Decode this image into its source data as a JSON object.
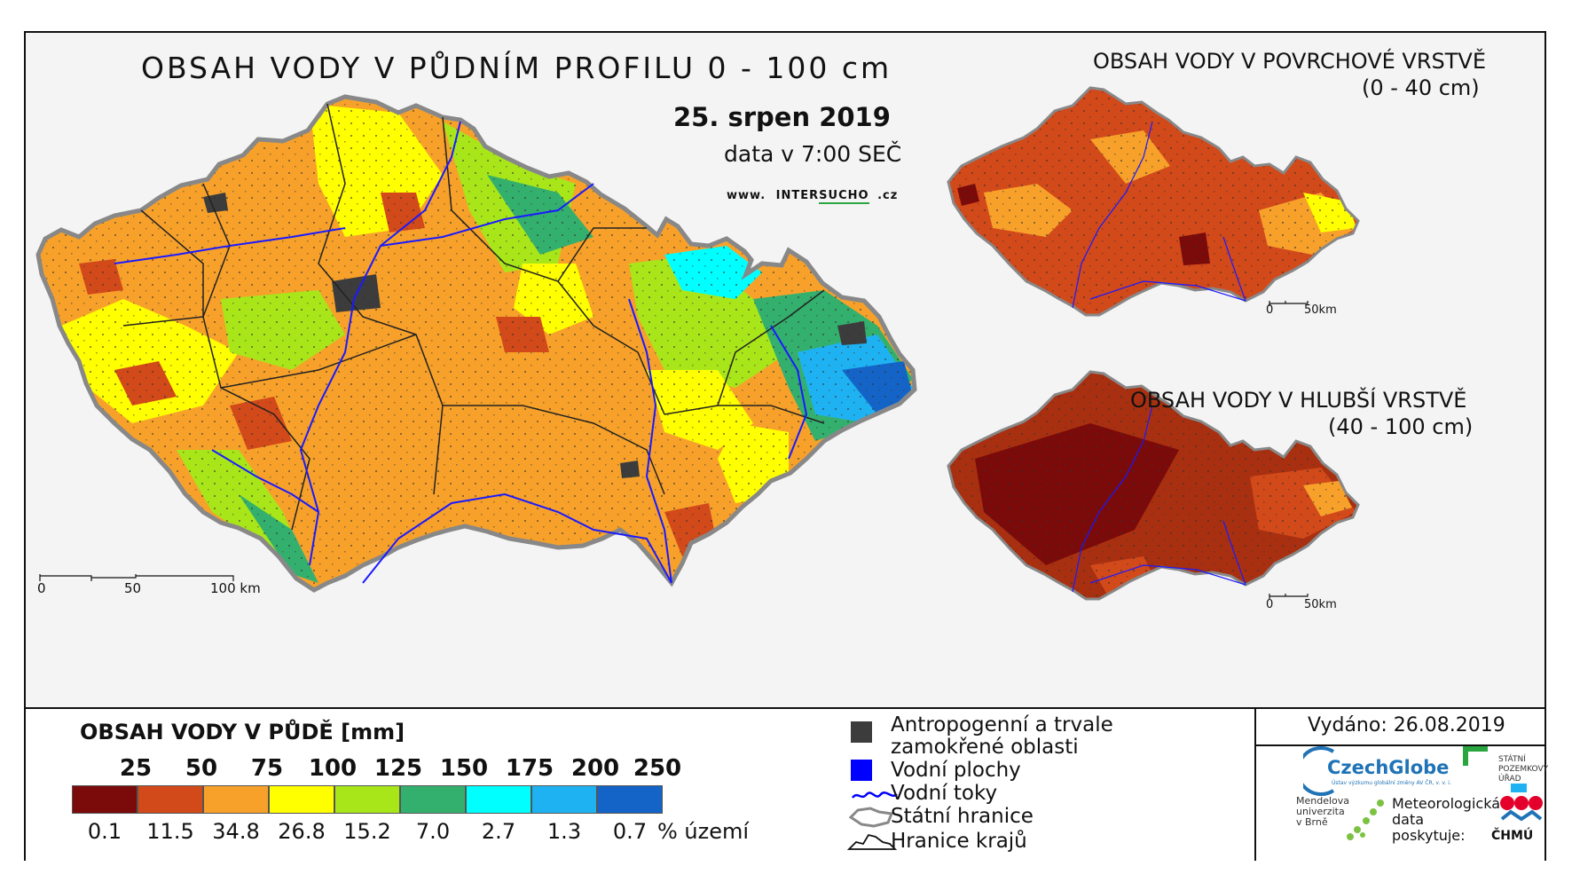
{
  "map": {
    "title": "OBSAH VODY V PŮDNÍM PROFILU 0 - 100 cm",
    "date": "25. srpen 2019",
    "time_note": "data v 7:00 SEČ",
    "website": {
      "prefix": "www.",
      "name_a": "INTER",
      "name_b": "SUCHO",
      "suffix": ".cz"
    },
    "scale": {
      "tick0": "0",
      "tick1": "50",
      "tick2": "100 km"
    }
  },
  "inset_surface": {
    "title": "OBSAH VODY V POVRCHOVÉ VRSTVĚ",
    "range": "(0 - 40 cm)",
    "scale": {
      "tick0": "0",
      "tick1": "50km"
    }
  },
  "inset_deep": {
    "title": "OBSAH VODY V HLUBŠÍ VRSTVĚ",
    "range": "(40 - 100 cm)",
    "scale": {
      "tick0": "0",
      "tick1": "50km"
    }
  },
  "legend": {
    "title": "OBSAH VODY V PŮDĚ [mm]",
    "thresholds": [
      "25",
      "50",
      "75",
      "100",
      "125",
      "150",
      "175",
      "200",
      "250"
    ],
    "classes": [
      {
        "color": "#7b0a0a",
        "percent": "0.1"
      },
      {
        "color": "#d2491a",
        "percent": "11.5"
      },
      {
        "color": "#f7a12a",
        "percent": "34.8"
      },
      {
        "color": "#ffff00",
        "percent": "26.8"
      },
      {
        "color": "#a8e61a",
        "percent": "15.2"
      },
      {
        "color": "#34b06e",
        "percent": "7.0"
      },
      {
        "color": "#00ffff",
        "percent": "2.7"
      },
      {
        "color": "#1fb2f2",
        "percent": "1.3"
      },
      {
        "color": "#1464c8",
        "percent": "0.7"
      }
    ],
    "percent_unit": "% území",
    "symbols": {
      "anthropogenic_line1": "Antropogenní a trvale",
      "anthropogenic_line2": "zamokřené oblasti",
      "anthropogenic_color": "#3c3c3c",
      "water_bodies": "Vodní plochy",
      "water_color": "#0000ff",
      "rivers": "Vodní toky",
      "river_color": "#0000ff",
      "state_border": "Státní hranice",
      "regions": "Hranice krajů"
    }
  },
  "issued": {
    "label": "Vydáno: 26.08.2019"
  },
  "logos": {
    "czechglobe": "CzechGlobe",
    "czechglobe_sub": "Ústav výzkumu globální změny AV ČR, v. v. i.",
    "spu_line1": "STÁTNÍ",
    "spu_line2": "POZEMKOVÝ",
    "spu_line3": "ÚŘAD",
    "mendel_line1": "Mendelova",
    "mendel_line2": "univerzita",
    "mendel_line3": "v Brně",
    "meteo_line1": "Meteorologická",
    "meteo_line2": "data",
    "meteo_line3": "poskytuje:",
    "chmu": "ČHMÚ"
  }
}
